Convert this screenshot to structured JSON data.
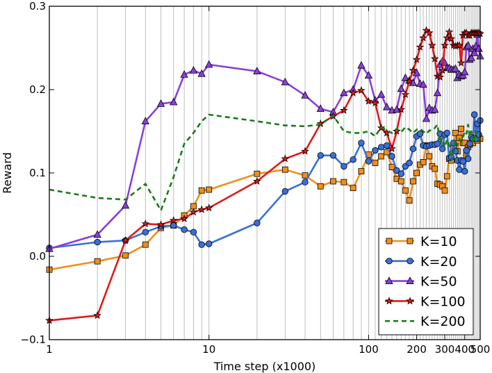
{
  "chart_data": {
    "type": "line",
    "title": "",
    "xlabel": "Time step (x1000)",
    "ylabel": "Reward",
    "xlim": [
      1,
      500
    ],
    "ylim": [
      -0.1,
      0.3
    ],
    "x_scale": "log",
    "x_ticks": [
      1,
      10,
      100,
      200,
      300,
      400,
      500
    ],
    "x_tick_labels": [
      "1",
      "10",
      "100",
      "200",
      "300",
      "400",
      "500"
    ],
    "y_ticks": [
      -0.1,
      0.0,
      0.1,
      0.2,
      0.3
    ],
    "y_tick_labels": [
      "−0.1",
      "0.0",
      "0.1",
      "0.2",
      "0.3"
    ],
    "grid": "vertical lines at every data x",
    "legend_position": "lower-right",
    "x": [
      1,
      2,
      3,
      4,
      5,
      6,
      7,
      8,
      9,
      10,
      20,
      30,
      40,
      50,
      60,
      70,
      80,
      90,
      100,
      110,
      120,
      130,
      140,
      150,
      160,
      170,
      180,
      190,
      200,
      210,
      220,
      230,
      240,
      250,
      260,
      270,
      280,
      290,
      300,
      310,
      320,
      330,
      340,
      350,
      360,
      370,
      380,
      390,
      400,
      410,
      420,
      430,
      440,
      450,
      460,
      470,
      480,
      490,
      500
    ],
    "series": [
      {
        "name": "K=10",
        "color": "#f28e1c",
        "marker": "square",
        "values": [
          -0.016,
          -0.006,
          0.001,
          0.014,
          0.034,
          0.037,
          0.049,
          0.06,
          0.079,
          0.08,
          0.099,
          0.104,
          0.097,
          0.084,
          0.09,
          0.089,
          0.082,
          0.102,
          0.122,
          0.112,
          0.12,
          0.125,
          0.107,
          0.093,
          0.09,
          0.079,
          0.067,
          0.09,
          0.1,
          0.11,
          0.113,
          0.133,
          0.12,
          0.108,
          0.105,
          0.087,
          0.086,
          0.084,
          0.079,
          0.096,
          0.117,
          0.115,
          0.13,
          0.148,
          0.126,
          0.142,
          0.153,
          0.136,
          0.136,
          0.121,
          0.131,
          0.134,
          0.136,
          0.136,
          0.141,
          0.147,
          0.139,
          0.144,
          0.141
        ]
      },
      {
        "name": "K=20",
        "color": "#3a6fd8",
        "marker": "circle",
        "values": [
          0.01,
          0.017,
          0.019,
          0.029,
          0.036,
          0.037,
          0.032,
          0.029,
          0.014,
          0.015,
          0.04,
          0.078,
          0.089,
          0.121,
          0.121,
          0.108,
          0.116,
          0.136,
          0.114,
          0.127,
          0.131,
          0.133,
          0.12,
          0.103,
          0.099,
          0.108,
          0.112,
          0.129,
          0.144,
          0.147,
          0.133,
          0.132,
          0.133,
          0.134,
          0.134,
          0.135,
          0.147,
          0.129,
          0.146,
          0.148,
          0.118,
          0.119,
          0.136,
          0.126,
          0.115,
          0.104,
          0.115,
          0.114,
          0.102,
          0.127,
          0.117,
          0.135,
          0.143,
          0.141,
          0.17,
          0.141,
          0.159,
          0.146,
          0.163
        ]
      },
      {
        "name": "K=50",
        "color": "#8a3fd8",
        "marker": "triangle",
        "values": [
          0.009,
          0.026,
          0.061,
          0.162,
          0.183,
          0.185,
          0.218,
          0.223,
          0.219,
          0.23,
          0.222,
          0.209,
          0.193,
          0.177,
          0.173,
          0.196,
          0.2,
          0.229,
          0.217,
          0.187,
          0.194,
          0.179,
          0.175,
          0.176,
          0.201,
          0.214,
          0.211,
          0.208,
          0.22,
          0.207,
          0.206,
          0.165,
          0.178,
          0.175,
          0.176,
          0.196,
          0.23,
          0.234,
          0.232,
          0.226,
          0.226,
          0.224,
          0.224,
          0.225,
          0.214,
          0.218,
          0.216,
          0.217,
          0.221,
          0.251,
          0.253,
          0.236,
          0.238,
          0.249,
          0.244,
          0.252,
          0.266,
          0.249,
          0.24
        ]
      },
      {
        "name": "K=100",
        "color": "#e01818",
        "marker": "star",
        "values": [
          -0.077,
          -0.071,
          0.019,
          0.039,
          0.038,
          0.043,
          0.045,
          0.053,
          0.056,
          0.058,
          0.09,
          0.117,
          0.126,
          0.159,
          0.168,
          0.175,
          0.196,
          0.199,
          0.186,
          0.184,
          0.154,
          0.148,
          0.129,
          0.15,
          0.176,
          0.194,
          0.21,
          0.223,
          0.236,
          0.251,
          0.262,
          0.271,
          0.268,
          0.253,
          0.237,
          0.216,
          0.215,
          0.223,
          0.253,
          0.262,
          0.269,
          0.261,
          0.253,
          0.252,
          0.253,
          0.253,
          0.232,
          0.265,
          0.268,
          0.268,
          0.265,
          0.265,
          0.268,
          0.268,
          0.268,
          0.268,
          0.268,
          0.268,
          0.267
        ]
      },
      {
        "name": "K=200",
        "color": "#1a7a1a",
        "marker": "none",
        "dashed": true,
        "values": [
          0.08,
          0.07,
          0.068,
          0.087,
          0.055,
          0.095,
          0.135,
          0.148,
          0.162,
          0.17,
          0.162,
          0.157,
          0.156,
          0.158,
          0.169,
          0.15,
          0.148,
          0.148,
          0.15,
          0.144,
          0.155,
          0.151,
          0.148,
          0.153,
          0.149,
          0.155,
          0.152,
          0.148,
          0.152,
          0.153,
          0.15,
          0.147,
          0.151,
          0.151,
          0.154,
          0.158,
          0.136,
          0.142,
          0.131,
          0.14,
          0.134,
          0.115,
          0.123,
          0.139,
          0.133,
          0.141,
          0.138,
          0.143,
          0.15,
          0.147,
          0.158,
          0.144,
          0.15,
          0.136,
          0.141,
          0.15,
          0.142,
          0.14,
          0.137
        ]
      }
    ]
  }
}
